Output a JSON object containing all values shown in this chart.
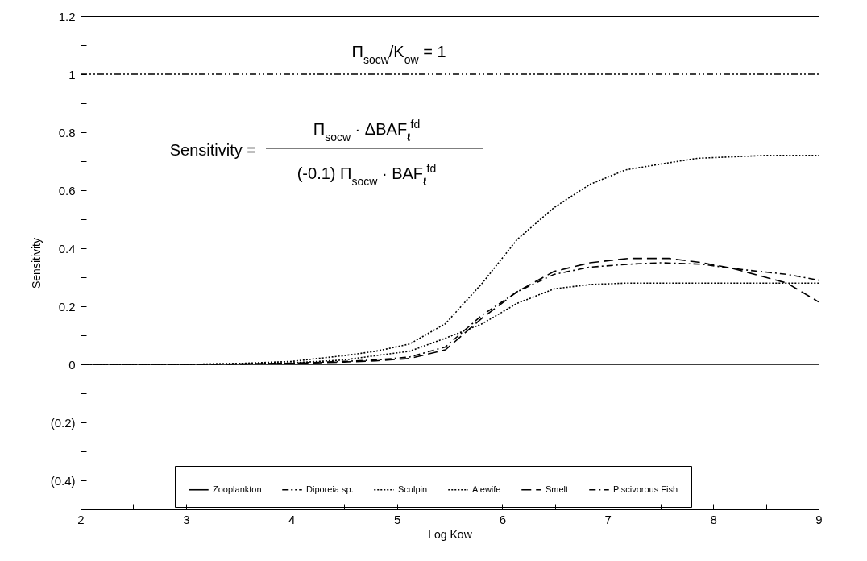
{
  "chart_data": {
    "type": "line",
    "xlabel": "Log Kow",
    "ylabel": "Sensitivity",
    "xlim": [
      2,
      9
    ],
    "xticks": [
      2,
      {
        "value": 2.5,
        "label": null
      },
      3,
      {
        "value": 3.5,
        "label": null
      },
      4,
      {
        "value": 4.5,
        "label": null
      },
      5,
      {
        "value": 5.5,
        "label": null
      },
      6,
      {
        "value": 6.5,
        "label": null
      },
      7,
      {
        "value": 7.5,
        "label": null
      },
      8,
      {
        "value": 8.5,
        "label": null
      },
      9
    ],
    "ylim": [
      -0.5,
      1.2
    ],
    "yticks": [
      {
        "value": -0.5,
        "label": null
      },
      {
        "value": -0.4,
        "label": "(0.4)"
      },
      {
        "value": -0.3,
        "label": null
      },
      {
        "value": -0.2,
        "label": "(0.2)"
      },
      {
        "value": -0.1,
        "label": null
      },
      0,
      {
        "value": 0.1,
        "label": null
      },
      0.2,
      {
        "value": 0.3,
        "label": null
      },
      0.4,
      {
        "value": 0.5,
        "label": null
      },
      0.6,
      {
        "value": 0.7,
        "label": null
      },
      0.8,
      {
        "value": 0.9,
        "label": null
      },
      1,
      {
        "value": 1.1,
        "label": null
      },
      1.2
    ],
    "grid": false,
    "legend": "bottom",
    "marker": "none",
    "annotations": [
      "Π$_{socw}$/K$_{ow}$ = 1",
      "Sensitivity =",
      "Π$_{socw}$ · ΔBAF$_{ℓ}$$^{fd}$",
      "(-0.1) Π$_{socw}$ · BAF$_{ℓ}$$^{fd}$"
    ],
    "series": [
      {
        "name": "Zooplankton",
        "color": "#000000",
        "line_style": "solid",
        "x": [
          2,
          9
        ],
        "values": [
          0,
          0
        ]
      },
      {
        "name": "Diporeia sp.",
        "color": "#000000",
        "line_style": "dashdotdot",
        "x": [
          2,
          9
        ],
        "values": [
          1,
          1
        ]
      },
      {
        "name": "Sculpin",
        "color": "#000000",
        "line_style": "dotted",
        "x": [
          2,
          3,
          3.5,
          4,
          4.5,
          4.8,
          5.12,
          5.46,
          5.81,
          6.14,
          6.49,
          6.83,
          7.17,
          7.5,
          7.85,
          8.5,
          9
        ],
        "values": [
          0,
          0,
          0.003,
          0.01,
          0.03,
          0.045,
          0.07,
          0.14,
          0.28,
          0.43,
          0.54,
          0.62,
          0.67,
          0.69,
          0.71,
          0.72,
          0.72
        ]
      },
      {
        "name": "Alewife",
        "color": "#000000",
        "line_style": "dotted",
        "x": [
          2,
          3,
          3.5,
          4,
          4.5,
          4.8,
          5.12,
          5.46,
          5.81,
          6.14,
          6.49,
          6.83,
          7.17,
          7.5,
          8,
          8.5,
          9
        ],
        "values": [
          0,
          0,
          0.002,
          0.005,
          0.015,
          0.03,
          0.045,
          0.09,
          0.14,
          0.21,
          0.26,
          0.275,
          0.28,
          0.28,
          0.28,
          0.28,
          0.28
        ]
      },
      {
        "name": "Smelt",
        "color": "#000000",
        "line_style": "dashed",
        "x": [
          2,
          3,
          3.5,
          4,
          4.5,
          4.8,
          5.12,
          5.46,
          5.81,
          6.14,
          6.49,
          6.83,
          7.2,
          7.58,
          7.9,
          8.19,
          8.7,
          9
        ],
        "values": [
          0,
          0,
          0.001,
          0.003,
          0.008,
          0.012,
          0.02,
          0.05,
          0.16,
          0.25,
          0.32,
          0.35,
          0.365,
          0.365,
          0.35,
          0.33,
          0.28,
          0.215
        ]
      },
      {
        "name": "Piscivorous Fish",
        "color": "#000000",
        "line_style": "dashdot",
        "x": [
          2,
          3,
          3.5,
          4,
          4.5,
          4.8,
          5.12,
          5.46,
          5.81,
          6.14,
          6.49,
          6.83,
          7.2,
          7.5,
          7.9,
          8.19,
          8.7,
          9
        ],
        "values": [
          0,
          0,
          0.001,
          0.004,
          0.01,
          0.015,
          0.025,
          0.06,
          0.17,
          0.25,
          0.31,
          0.335,
          0.345,
          0.35,
          0.345,
          0.33,
          0.31,
          0.29
        ]
      }
    ]
  }
}
